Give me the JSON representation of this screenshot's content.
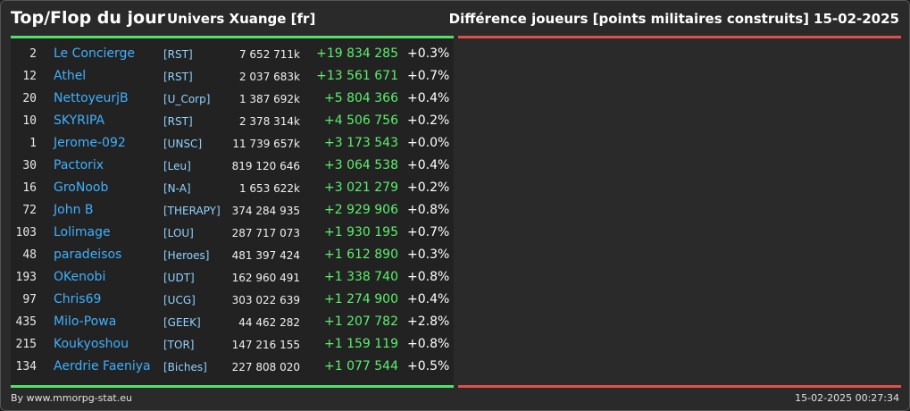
{
  "header": {
    "title": "Top/Flop du jour",
    "universe": "Univers Xuange [fr]",
    "metric": "Différence joueurs [points militaires construits]",
    "date": "15-02-2025"
  },
  "colors": {
    "top_accent": "#55e06a",
    "flop_accent": "#e0504a",
    "name": "#3fb0ff",
    "alliance": "#8fd2ff",
    "gain": "#5cf06c"
  },
  "top": [
    {
      "rank": "2",
      "name": "Le Concierge",
      "alliance": "[RST]",
      "points": "7 652 711k",
      "diff": "+19 834 285",
      "pct": "+0.3%"
    },
    {
      "rank": "12",
      "name": "Athel",
      "alliance": "[RST]",
      "points": "2 037 683k",
      "diff": "+13 561 671",
      "pct": "+0.7%"
    },
    {
      "rank": "20",
      "name": "NettoyeurjB",
      "alliance": "[U_Corp]",
      "points": "1 387 692k",
      "diff": "+5 804 366",
      "pct": "+0.4%"
    },
    {
      "rank": "10",
      "name": "SKYRIPA",
      "alliance": "[RST]",
      "points": "2 378 314k",
      "diff": "+4 506 756",
      "pct": "+0.2%"
    },
    {
      "rank": "1",
      "name": "Jerome-092",
      "alliance": "[UNSC]",
      "points": "11 739 657k",
      "diff": "+3 173 543",
      "pct": "+0.0%"
    },
    {
      "rank": "30",
      "name": "Pactorix",
      "alliance": "[Leu]",
      "points": "819 120 646",
      "diff": "+3 064 538",
      "pct": "+0.4%"
    },
    {
      "rank": "16",
      "name": "GroNoob",
      "alliance": "[N-A]",
      "points": "1 653 622k",
      "diff": "+3 021 279",
      "pct": "+0.2%"
    },
    {
      "rank": "72",
      "name": "John B",
      "alliance": "[THERAPY]",
      "points": "374 284 935",
      "diff": "+2 929 906",
      "pct": "+0.8%"
    },
    {
      "rank": "103",
      "name": "Lolimage",
      "alliance": "[LOU]",
      "points": "287 717 073",
      "diff": "+1 930 195",
      "pct": "+0.7%"
    },
    {
      "rank": "48",
      "name": "paradeisos",
      "alliance": "[Heroes]",
      "points": "481 397 424",
      "diff": "+1 612 890",
      "pct": "+0.3%"
    },
    {
      "rank": "193",
      "name": "OKenobi",
      "alliance": "[UDT]",
      "points": "162 960 491",
      "diff": "+1 338 740",
      "pct": "+0.8%"
    },
    {
      "rank": "97",
      "name": "Chris69",
      "alliance": "[UCG]",
      "points": "303 022 639",
      "diff": "+1 274 900",
      "pct": "+0.4%"
    },
    {
      "rank": "435",
      "name": "Milo-Powa",
      "alliance": "[GEEK]",
      "points": "44 462 282",
      "diff": "+1 207 782",
      "pct": "+2.8%"
    },
    {
      "rank": "215",
      "name": "Koukyoshou",
      "alliance": "[TOR]",
      "points": "147 216 155",
      "diff": "+1 159 119",
      "pct": "+0.8%"
    },
    {
      "rank": "134",
      "name": "Aerdrie Faeniya",
      "alliance": "[Biches]",
      "points": "227 808 020",
      "diff": "+1 077 544",
      "pct": "+0.5%"
    }
  ],
  "footer": {
    "credit": "By www.mmorpg-stat.eu",
    "timestamp": "15-02-2025 00:27:34"
  }
}
